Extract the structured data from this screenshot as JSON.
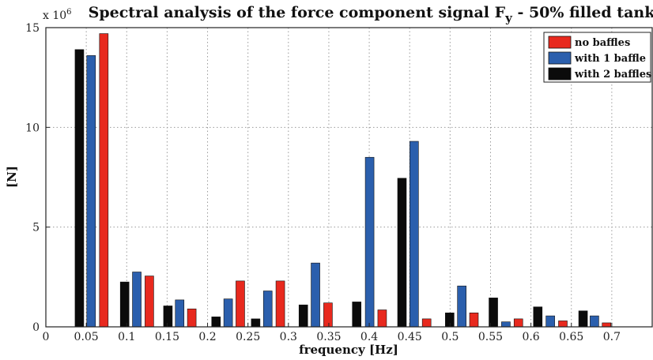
{
  "chart_data": {
    "type": "bar",
    "title_main": "Spectral analysis of the force component signal F",
    "title_sub": "y",
    "title_tail": " - 50% filled tank",
    "xlabel": "frequency [Hz]",
    "ylabel": "[N]",
    "y_multiplier": "x 10",
    "y_multiplier_exp": "6",
    "xlim": [
      0,
      0.75
    ],
    "ylim": [
      0,
      15
    ],
    "x_ticks": [
      "0",
      "0.05",
      "0.1",
      "0.15",
      "0.2",
      "0.25",
      "0.3",
      "0.35",
      "0.4",
      "0.45",
      "0.5",
      "0.55",
      "0.6",
      "0.65",
      "0.7"
    ],
    "y_ticks": [
      "0",
      "5",
      "10",
      "15"
    ],
    "grid": true,
    "legend_position": "top-right",
    "series": [
      {
        "name": "no baffles",
        "color": "#e8291e",
        "x": [
          0.0717,
          0.128,
          0.1805,
          0.2405,
          0.29,
          0.349,
          0.416,
          0.471,
          0.5295,
          0.5845,
          0.6395,
          0.6935
        ],
        "values": [
          14.7,
          2.55,
          0.9,
          2.3,
          2.3,
          1.2,
          0.85,
          0.4,
          0.7,
          0.4,
          0.3,
          0.2
        ]
      },
      {
        "name": "with 1 baffle",
        "color": "#2b5fad",
        "x": [
          0.056,
          0.1125,
          0.1655,
          0.2255,
          0.2745,
          0.3335,
          0.4005,
          0.4555,
          0.5145,
          0.569,
          0.624,
          0.6785
        ],
        "values": [
          13.6,
          2.75,
          1.35,
          1.4,
          1.8,
          3.2,
          8.5,
          9.3,
          2.05,
          0.25,
          0.55,
          0.55
        ]
      },
      {
        "name": "with 2 baffles",
        "color": "#0b0b0b",
        "x": [
          0.0415,
          0.0975,
          0.151,
          0.2105,
          0.2595,
          0.3185,
          0.3845,
          0.4405,
          0.4995,
          0.5535,
          0.6085,
          0.6645
        ],
        "values": [
          13.9,
          2.25,
          1.05,
          0.5,
          0.4,
          1.1,
          1.25,
          7.45,
          0.7,
          1.45,
          1.0,
          0.8
        ]
      }
    ]
  }
}
